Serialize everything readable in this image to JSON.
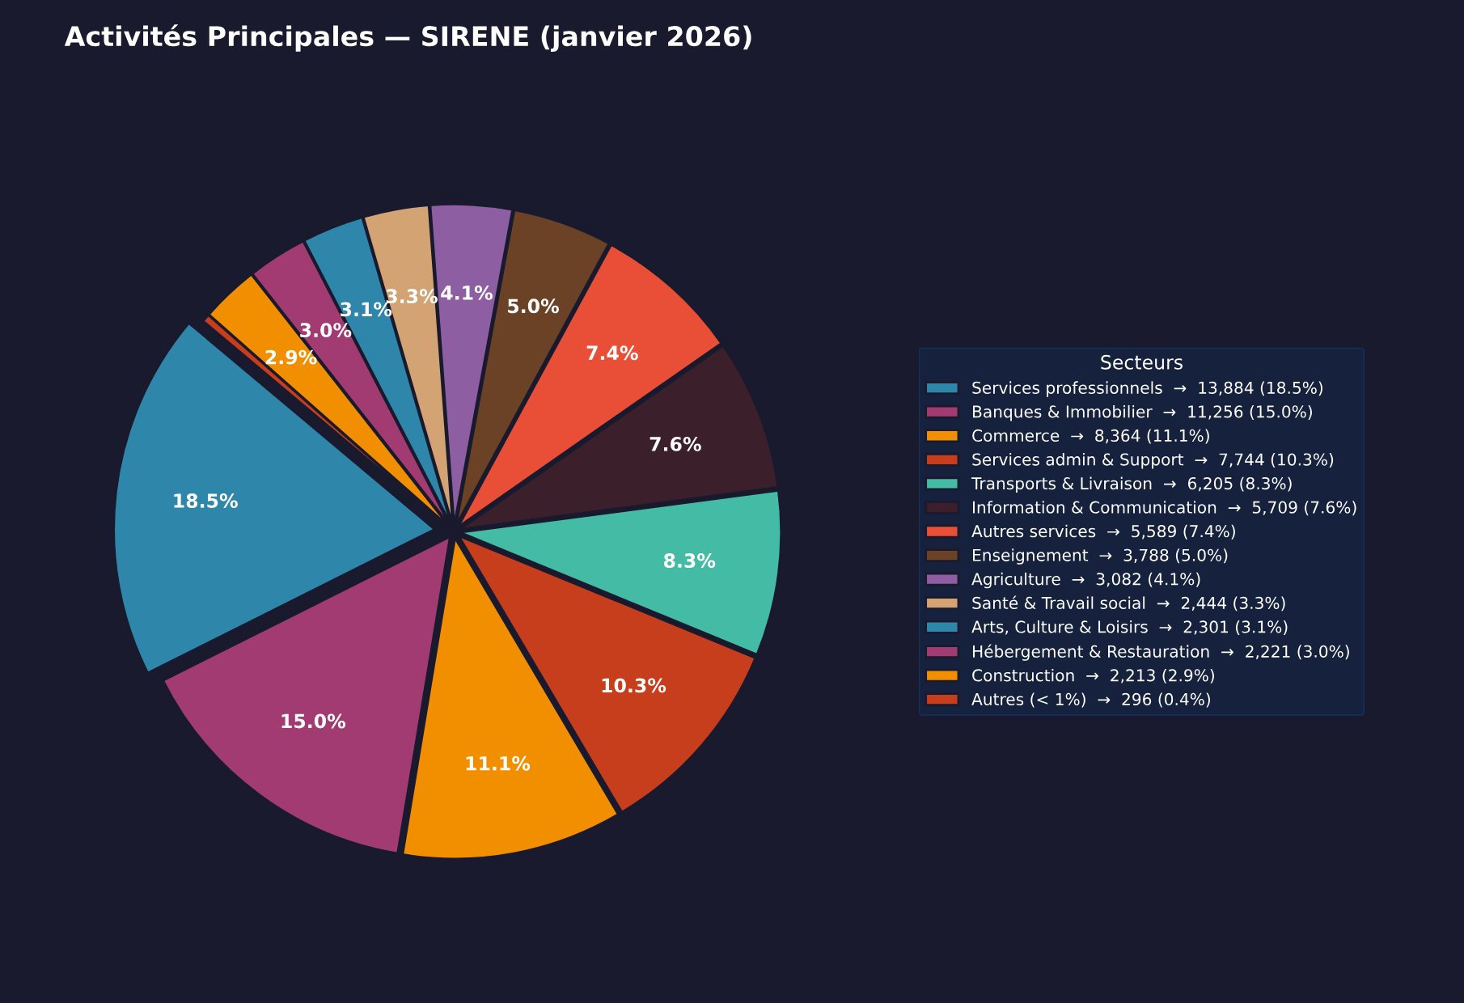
{
  "chart_data": {
    "type": "pie",
    "title": "Activités Principales — SIRENE (janvier 2026)",
    "legend_title": "Secteurs",
    "legend": "right",
    "categories": [
      "Services professionnels  →  13,884 (18.5%)",
      "Banques & Immobilier  →  11,256 (15.0%)",
      "Commerce  →  8,364 (11.1%)",
      "Services admin & Support  →  7,744 (10.3%)",
      "Transports & Livraison  →  6,205 (8.3%)",
      "Information & Communication  →  5,709 (7.6%)",
      "Autres services  →  5,589 (7.4%)",
      "Enseignement  →  3,788 (5.0%)",
      "Agriculture  →  3,082 (4.1%)",
      "Santé & Travail social  →  2,444 (3.3%)",
      "Arts, Culture & Loisirs  →  2,301 (3.1%)",
      "Hébergement & Restauration  →  2,221 (3.0%)",
      "Construction  →  2,213 (2.9%)",
      "Autres (< 1%)  →  296 (0.4%)"
    ],
    "values": [
      18.5,
      15.0,
      11.1,
      10.3,
      8.3,
      7.6,
      7.4,
      5.0,
      4.1,
      3.3,
      3.1,
      3.0,
      2.9,
      0.4
    ],
    "value_labels": [
      "18.5%",
      "15.0%",
      "11.1%",
      "10.3%",
      "8.3%",
      "7.6%",
      "7.4%",
      "5.0%",
      "4.1%",
      "3.3%",
      "3.1%",
      "3.0%",
      "2.9%",
      null
    ],
    "colors": [
      "#2e86ab",
      "#a23b72",
      "#f18f01",
      "#c73e1d",
      "#44bba4",
      "#3b1f2b",
      "#e94f37",
      "#6b4226",
      "#8e5ea2",
      "#d4a373",
      "#2e86ab",
      "#a23b72",
      "#f18f01",
      "#c73e1d"
    ]
  }
}
